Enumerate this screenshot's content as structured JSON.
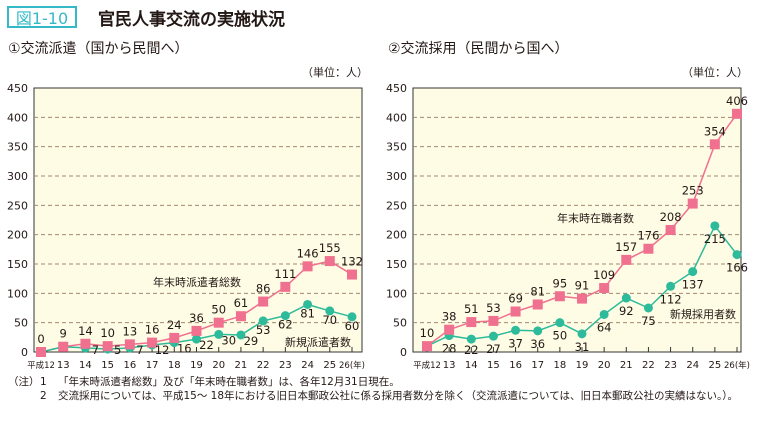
{
  "header": {
    "figure_label": "図1-10",
    "title": "官民人事交流の実施状況"
  },
  "notes": {
    "head": "（注）",
    "items": [
      {
        "num": "1",
        "text": "「年末時派遣者総数」及び「年末時在職者数」は、各年12月31日現在。"
      },
      {
        "num": "2",
        "text": "交流採用については、平成15～ 18年における旧日本郵政公社に係る採用者数分を除く（交流派遣については、旧日本郵政公社の実績はない。）。"
      }
    ]
  },
  "colors": {
    "accent": "#36b9c7",
    "pink": "#f0708f",
    "green": "#2ebb9b",
    "plot_bg": "#fefce4",
    "grid": "#a08a70"
  },
  "chart_data": [
    {
      "type": "line",
      "title": "①交流派遣（国から民間へ）",
      "unit": "（単位：人）",
      "categories": [
        "平成12",
        "13",
        "14",
        "15",
        "16",
        "17",
        "18",
        "19",
        "20",
        "21",
        "22",
        "23",
        "24",
        "25",
        "26(年)"
      ],
      "ylim": [
        0,
        450
      ],
      "yticks": [
        0,
        50,
        100,
        150,
        200,
        250,
        300,
        350,
        400,
        450
      ],
      "grid": true,
      "series": [
        {
          "name": "年末時派遣者総数",
          "color": "#f0708f",
          "marker": "square",
          "values": [
            0,
            9,
            14,
            10,
            13,
            16,
            24,
            36,
            50,
            61,
            86,
            111,
            146,
            155,
            132
          ]
        },
        {
          "name": "新規派遣者数",
          "color": "#2ebb9b",
          "marker": "circle",
          "values": [
            0,
            9,
            7,
            5,
            7,
            12,
            16,
            22,
            30,
            29,
            53,
            62,
            81,
            70,
            60
          ],
          "labeled_from": 2
        }
      ]
    },
    {
      "type": "line",
      "title": "②交流採用（民間から国へ）",
      "unit": "（単位：人）",
      "categories": [
        "平成12",
        "13",
        "14",
        "15",
        "16",
        "17",
        "18",
        "19",
        "20",
        "21",
        "22",
        "23",
        "24",
        "25",
        "26(年)"
      ],
      "ylim": [
        0,
        450
      ],
      "yticks": [
        0,
        50,
        100,
        150,
        200,
        250,
        300,
        350,
        400,
        450
      ],
      "grid": true,
      "series": [
        {
          "name": "年末時在職者数",
          "color": "#f0708f",
          "marker": "square",
          "values": [
            10,
            38,
            51,
            53,
            69,
            81,
            95,
            91,
            109,
            157,
            176,
            208,
            253,
            354,
            406
          ]
        },
        {
          "name": "新規採用者数",
          "color": "#2ebb9b",
          "marker": "circle",
          "values": [
            10,
            28,
            22,
            27,
            37,
            36,
            50,
            31,
            64,
            92,
            75,
            112,
            137,
            215,
            166
          ],
          "labeled_from": 1
        }
      ]
    }
  ]
}
